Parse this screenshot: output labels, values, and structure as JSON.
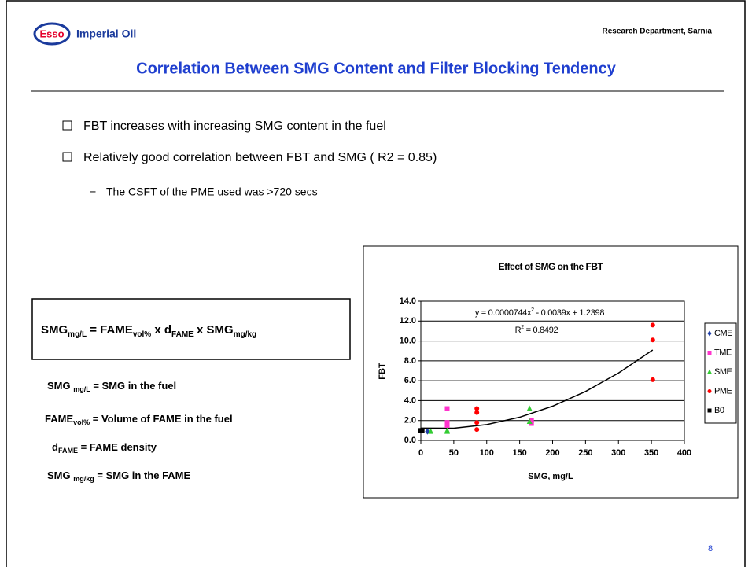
{
  "header": {
    "logo": "Esso",
    "company": "Imperial Oil",
    "department": "Research Department, Sarnia",
    "title": "Correlation Between SMG Content and Filter Blocking Tendency"
  },
  "bullets": [
    "FBT increases with increasing SMG content in the fuel",
    "Relatively good correlation between FBT and SMG ( R2 = 0.85)"
  ],
  "sub_bullets": [
    "The CSFT of the PME used was >720 secs"
  ],
  "formula": [
    [
      "SMG",
      "mg/L"
    ],
    [
      "  =  FAME",
      "vol%"
    ],
    [
      " x d",
      "FAME"
    ],
    [
      "  x  SMG",
      "mg/kg"
    ]
  ],
  "definitions": [
    [
      "SMG ",
      "mg/L",
      " = SMG in the fuel"
    ],
    [
      "FAME",
      "vol%",
      " = Volume of FAME in the fuel"
    ],
    [
      "d",
      "FAME",
      " = FAME density"
    ],
    [
      "SMG ",
      "mg/kg",
      " = SMG in the FAME"
    ]
  ],
  "chart": {
    "type": "scatter",
    "title": "Effect of SMG on the FBT",
    "x_label": "SMG, mg/L",
    "y_label": "FBT",
    "xlim": [
      0,
      400
    ],
    "xticks": [
      0,
      50,
      100,
      150,
      200,
      250,
      300,
      350,
      400
    ],
    "ylim": [
      0,
      14
    ],
    "yticks": [
      {
        "value": 0,
        "label": "0.0"
      },
      {
        "value": 2,
        "label": "2.0"
      },
      {
        "value": 4,
        "label": "4.0"
      },
      {
        "value": 6,
        "label": "6.0"
      },
      {
        "value": 8,
        "label": "8.0"
      },
      {
        "value": 10,
        "label": "10.0"
      },
      {
        "value": 12,
        "label": "12.0"
      },
      {
        "value": 14,
        "label": "14.0"
      }
    ],
    "grid": true,
    "series": [
      {
        "name": "CME",
        "color": "#1f3fa8",
        "marker": "diamond",
        "x": [
          10
        ],
        "values": [
          0.9
        ]
      },
      {
        "name": "TME",
        "color": "#ff33cc",
        "marker": "square",
        "x": [
          40,
          40,
          40,
          168,
          168
        ],
        "values": [
          3.2,
          1.8,
          1.5,
          1.7,
          2.0
        ]
      },
      {
        "name": "SME",
        "color": "#33cc33",
        "marker": "triangle",
        "x": [
          15,
          40,
          40,
          165,
          165
        ],
        "values": [
          0.9,
          1.0,
          0.9,
          3.2,
          1.9
        ]
      },
      {
        "name": "PME",
        "color": "#ff0000",
        "marker": "circle",
        "x": [
          85,
          85,
          85,
          85,
          352,
          352,
          352
        ],
        "values": [
          3.2,
          2.8,
          1.8,
          1.1,
          11.6,
          10.1,
          6.1
        ]
      },
      {
        "name": "B0",
        "color": "#000000",
        "marker": "square",
        "x": [
          0,
          2
        ],
        "values": [
          1.0,
          1.0
        ]
      }
    ],
    "trendline": {
      "x": [
        0,
        50,
        100,
        150,
        200,
        250,
        300,
        352
      ],
      "values": [
        1.24,
        1.23,
        1.59,
        2.33,
        3.44,
        4.92,
        6.77,
        9.1
      ]
    },
    "equation": [
      "y = 0.0000744x",
      "2",
      " - 0.0039x + 1.2398"
    ],
    "r_squared": [
      "R",
      "2",
      " = 0.8492"
    ]
  },
  "page_number": "8"
}
